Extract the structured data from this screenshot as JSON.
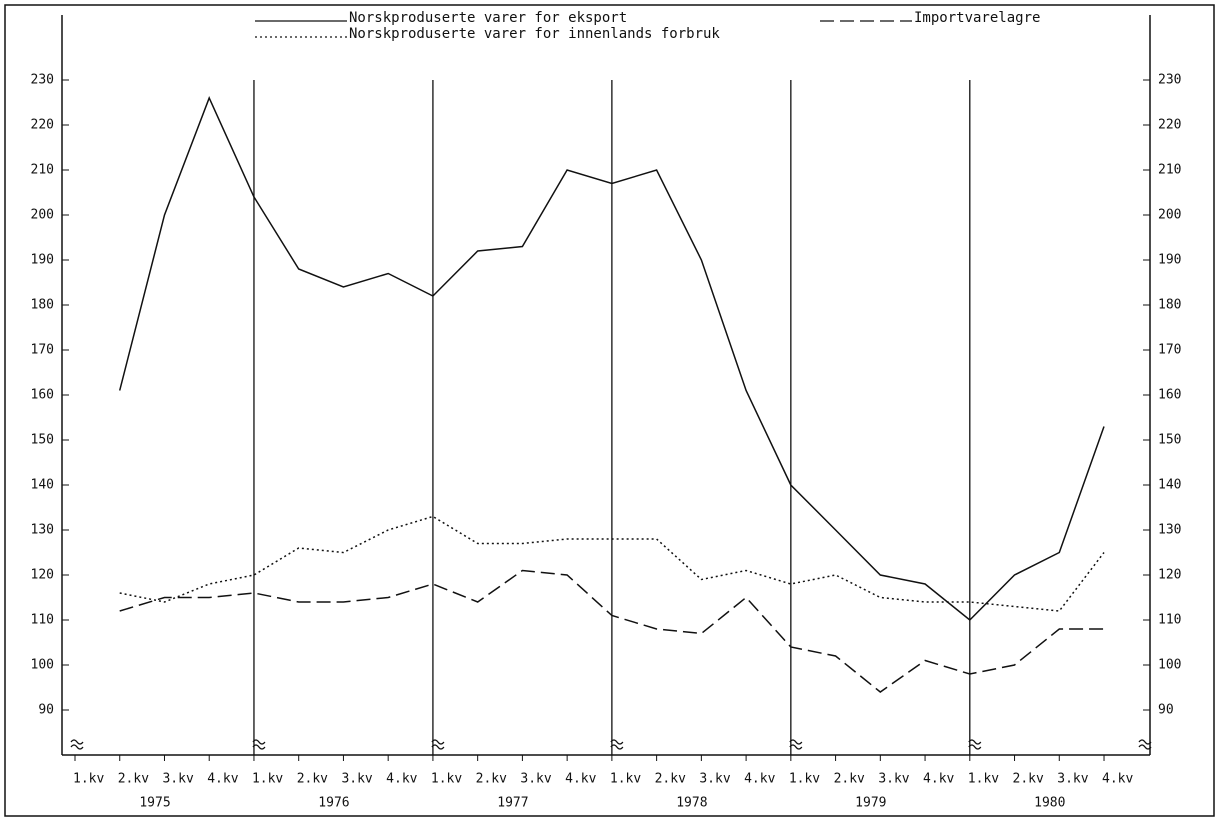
{
  "chart_data": {
    "type": "line",
    "categories": [
      "1.kv",
      "2.kv",
      "3.kv",
      "4.kv",
      "1.kv",
      "2.kv",
      "3.kv",
      "4.kv",
      "1.kv",
      "2.kv",
      "3.kv",
      "4.kv",
      "1.kv",
      "2.kv",
      "3.kv",
      "4.kv",
      "1.kv",
      "2.kv",
      "3.kv",
      "4.kv",
      "1.kv",
      "2.kv",
      "3.kv",
      "4.kv"
    ],
    "years": [
      "1975",
      "1976",
      "1977",
      "1978",
      "1979",
      "1980"
    ],
    "series": [
      {
        "name": "Norskproduserte varer for eksport",
        "color": "#111111",
        "dash": "solid",
        "values": [
          null,
          161,
          200,
          226,
          204,
          188,
          184,
          187,
          182,
          192,
          193,
          210,
          207,
          210,
          190,
          161,
          140,
          130,
          120,
          118,
          110,
          120,
          125,
          153
        ]
      },
      {
        "name": "Importvarelagre",
        "color": "#111111",
        "dash": "dashed",
        "values": [
          null,
          112,
          115,
          115,
          116,
          114,
          114,
          115,
          118,
          114,
          121,
          120,
          111,
          108,
          107,
          115,
          104,
          102,
          94,
          101,
          98,
          100,
          108,
          108
        ]
      },
      {
        "name": "Norskproduserte varer for innenlands forbruk",
        "color": "#111111",
        "dash": "dotted",
        "values": [
          null,
          116,
          114,
          118,
          120,
          126,
          125,
          130,
          133,
          127,
          127,
          128,
          128,
          128,
          119,
          121,
          118,
          120,
          115,
          114,
          114,
          113,
          112,
          125
        ]
      }
    ],
    "ylim": [
      80,
      230
    ],
    "yticks": [
      90,
      100,
      110,
      120,
      130,
      140,
      150,
      160,
      170,
      180,
      190,
      200,
      210,
      220,
      230
    ],
    "mirror_y_axis": true,
    "year_separators": true
  }
}
